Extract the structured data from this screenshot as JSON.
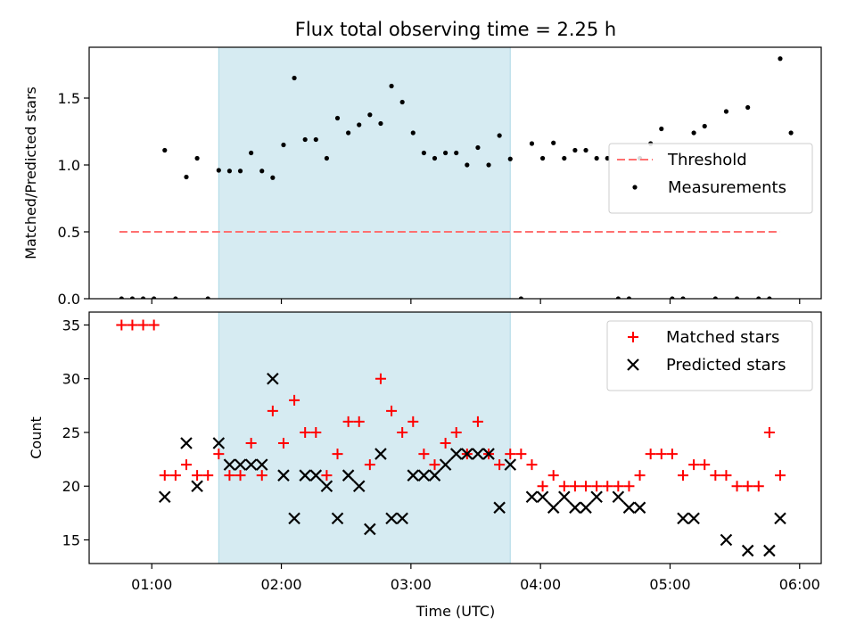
{
  "chart_data": [
    {
      "type": "scatter",
      "title": "Flux total observing time = 2.25 h",
      "xlabel": "",
      "ylabel": "Matched/Predicted stars",
      "ylim": [
        0,
        1.88
      ],
      "xlim": [
        "00:31",
        "06:10"
      ],
      "yticks": [
        0.0,
        0.5,
        1.0,
        1.5
      ],
      "ytick_labels": [
        "0.0",
        "0.5",
        "1.0",
        "1.5"
      ],
      "grid": false,
      "legend_placement": "center-right",
      "shaded_span": {
        "start": "01:31",
        "end": "03:46",
        "color": "#add8e6"
      },
      "threshold": {
        "name": "Threshold",
        "value": 0.5,
        "start": "00:45",
        "end": "05:51",
        "color": "#ff7070"
      },
      "series": [
        {
          "name": "Measurements",
          "color": "#000000",
          "points": [
            [
              "00:46",
              0
            ],
            [
              "00:51",
              0
            ],
            [
              "00:56",
              0
            ],
            [
              "01:01",
              0
            ],
            [
              "01:06",
              1.11
            ],
            [
              "01:11",
              0
            ],
            [
              "01:16",
              0.91
            ],
            [
              "01:21",
              1.05
            ],
            [
              "01:26",
              0
            ],
            [
              "01:31",
              0.96
            ],
            [
              "01:36",
              0.955
            ],
            [
              "01:41",
              0.955
            ],
            [
              "01:46",
              1.09
            ],
            [
              "01:51",
              0.955
            ],
            [
              "01:56",
              0.905
            ],
            [
              "02:01",
              1.15
            ],
            [
              "02:06",
              1.65
            ],
            [
              "02:11",
              1.19
            ],
            [
              "02:16",
              1.19
            ],
            [
              "02:21",
              1.05
            ],
            [
              "02:26",
              1.35
            ],
            [
              "02:31",
              1.24
            ],
            [
              "02:36",
              1.3
            ],
            [
              "02:41",
              1.375
            ],
            [
              "02:46",
              1.31
            ],
            [
              "02:51",
              1.59
            ],
            [
              "02:56",
              1.47
            ],
            [
              "03:01",
              1.24
            ],
            [
              "03:06",
              1.09
            ],
            [
              "03:11",
              1.05
            ],
            [
              "03:16",
              1.09
            ],
            [
              "03:21",
              1.09
            ],
            [
              "03:26",
              1.0
            ],
            [
              "03:31",
              1.13
            ],
            [
              "03:36",
              1.0
            ],
            [
              "03:41",
              1.22
            ],
            [
              "03:46",
              1.045
            ],
            [
              "03:51",
              0
            ],
            [
              "03:56",
              1.16
            ],
            [
              "04:01",
              1.05
            ],
            [
              "04:06",
              1.165
            ],
            [
              "04:11",
              1.05
            ],
            [
              "04:16",
              1.11
            ],
            [
              "04:21",
              1.11
            ],
            [
              "04:26",
              1.05
            ],
            [
              "04:31",
              1.05
            ],
            [
              "04:36",
              0
            ],
            [
              "04:41",
              0
            ],
            [
              "04:46",
              1.05
            ],
            [
              "04:51",
              1.16
            ],
            [
              "04:56",
              1.27
            ],
            [
              "05:01",
              0
            ],
            [
              "05:06",
              0
            ],
            [
              "05:11",
              1.24
            ],
            [
              "05:16",
              1.29
            ],
            [
              "05:21",
              0
            ],
            [
              "05:26",
              1.4
            ],
            [
              "05:31",
              0
            ],
            [
              "05:36",
              1.43
            ],
            [
              "05:41",
              0
            ],
            [
              "05:46",
              0
            ],
            [
              "05:51",
              1.795
            ],
            [
              "05:56",
              1.24
            ]
          ]
        }
      ]
    },
    {
      "type": "scatter",
      "title": "",
      "xlabel": "Time (UTC)",
      "ylabel": "Count",
      "ylim": [
        12.8,
        36.2
      ],
      "xlim": [
        "00:31",
        "06:10"
      ],
      "xticks": [
        "01:00",
        "02:00",
        "03:00",
        "04:00",
        "05:00",
        "06:00"
      ],
      "yticks": [
        15,
        20,
        25,
        30,
        35
      ],
      "ytick_labels": [
        "15",
        "20",
        "25",
        "30",
        "35"
      ],
      "grid": false,
      "legend_placement": "top-right",
      "shaded_span": {
        "start": "01:31",
        "end": "03:46",
        "color": "#add8e6"
      },
      "series": [
        {
          "name": "Matched stars",
          "marker": "plus",
          "color": "#ff0000",
          "points": [
            [
              "00:46",
              35
            ],
            [
              "00:51",
              35
            ],
            [
              "00:56",
              35
            ],
            [
              "01:01",
              35
            ],
            [
              "01:06",
              21
            ],
            [
              "01:11",
              21
            ],
            [
              "01:16",
              22
            ],
            [
              "01:21",
              21
            ],
            [
              "01:26",
              21
            ],
            [
              "01:31",
              23
            ],
            [
              "01:36",
              21
            ],
            [
              "01:41",
              21
            ],
            [
              "01:46",
              24
            ],
            [
              "01:51",
              21
            ],
            [
              "01:56",
              27
            ],
            [
              "02:01",
              24
            ],
            [
              "02:06",
              28
            ],
            [
              "02:11",
              25
            ],
            [
              "02:16",
              25
            ],
            [
              "02:21",
              21
            ],
            [
              "02:26",
              23
            ],
            [
              "02:31",
              26
            ],
            [
              "02:36",
              26
            ],
            [
              "02:41",
              22
            ],
            [
              "02:46",
              30
            ],
            [
              "02:51",
              27
            ],
            [
              "02:56",
              25
            ],
            [
              "03:01",
              26
            ],
            [
              "03:06",
              23
            ],
            [
              "03:11",
              22
            ],
            [
              "03:16",
              24
            ],
            [
              "03:21",
              25
            ],
            [
              "03:26",
              23
            ],
            [
              "03:31",
              26
            ],
            [
              "03:36",
              23
            ],
            [
              "03:41",
              22
            ],
            [
              "03:46",
              23
            ],
            [
              "03:51",
              23
            ],
            [
              "03:56",
              22
            ],
            [
              "04:01",
              20
            ],
            [
              "04:06",
              21
            ],
            [
              "04:11",
              20
            ],
            [
              "04:16",
              20
            ],
            [
              "04:21",
              20
            ],
            [
              "04:26",
              20
            ],
            [
              "04:31",
              20
            ],
            [
              "04:36",
              20
            ],
            [
              "04:41",
              20
            ],
            [
              "04:46",
              21
            ],
            [
              "04:51",
              23
            ],
            [
              "04:56",
              23
            ],
            [
              "05:01",
              23
            ],
            [
              "05:06",
              21
            ],
            [
              "05:11",
              22
            ],
            [
              "05:16",
              22
            ],
            [
              "05:21",
              21
            ],
            [
              "05:26",
              21
            ],
            [
              "05:31",
              20
            ],
            [
              "05:36",
              20
            ],
            [
              "05:41",
              20
            ],
            [
              "05:46",
              25
            ],
            [
              "05:51",
              21
            ]
          ]
        },
        {
          "name": "Predicted stars",
          "marker": "x",
          "color": "#000000",
          "points": [
            [
              "01:06",
              19
            ],
            [
              "01:16",
              24
            ],
            [
              "01:21",
              20
            ],
            [
              "01:31",
              24
            ],
            [
              "01:36",
              22
            ],
            [
              "01:41",
              22
            ],
            [
              "01:46",
              22
            ],
            [
              "01:51",
              22
            ],
            [
              "01:56",
              30
            ],
            [
              "02:01",
              21
            ],
            [
              "02:06",
              17
            ],
            [
              "02:11",
              21
            ],
            [
              "02:16",
              21
            ],
            [
              "02:21",
              20
            ],
            [
              "02:26",
              17
            ],
            [
              "02:31",
              21
            ],
            [
              "02:36",
              20
            ],
            [
              "02:41",
              16
            ],
            [
              "02:46",
              23
            ],
            [
              "02:51",
              17
            ],
            [
              "02:56",
              17
            ],
            [
              "03:01",
              21
            ],
            [
              "03:06",
              21
            ],
            [
              "03:11",
              21
            ],
            [
              "03:16",
              22
            ],
            [
              "03:21",
              23
            ],
            [
              "03:26",
              23
            ],
            [
              "03:31",
              23
            ],
            [
              "03:36",
              23
            ],
            [
              "03:41",
              18
            ],
            [
              "03:46",
              22
            ],
            [
              "03:56",
              19
            ],
            [
              "04:01",
              19
            ],
            [
              "04:06",
              18
            ],
            [
              "04:11",
              19
            ],
            [
              "04:16",
              18
            ],
            [
              "04:21",
              18
            ],
            [
              "04:26",
              19
            ],
            [
              "04:36",
              19
            ],
            [
              "04:41",
              18
            ],
            [
              "04:46",
              18
            ],
            [
              "05:06",
              17
            ],
            [
              "05:11",
              17
            ],
            [
              "05:26",
              15
            ],
            [
              "05:36",
              14
            ],
            [
              "05:46",
              14
            ],
            [
              "05:51",
              17
            ]
          ]
        }
      ]
    }
  ]
}
